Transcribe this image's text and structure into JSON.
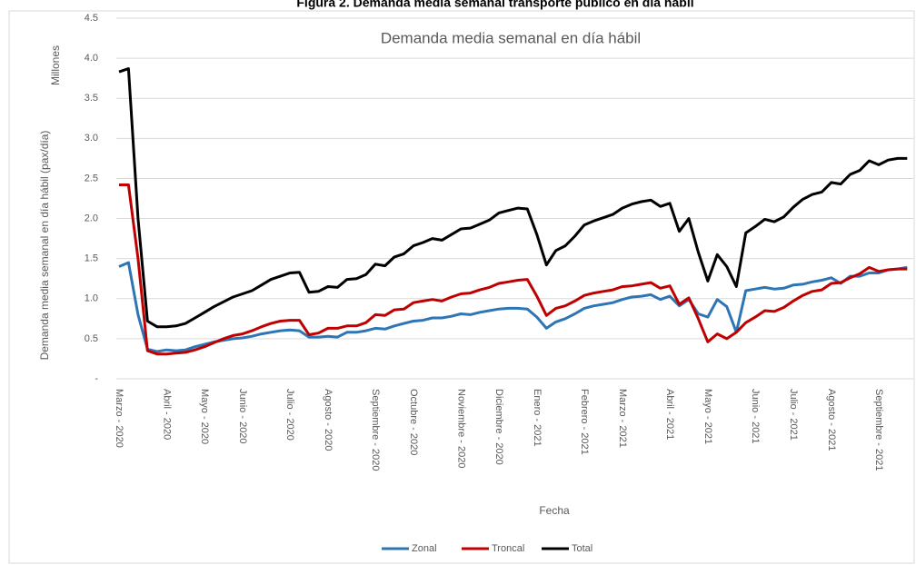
{
  "chart_data": {
    "type": "line",
    "figure_title": "Figura 2. Demanda media semanal transporte público en día hábil",
    "title": "Demanda media semanal en día hábil",
    "y_label": "Demanda media semanal en día hábil (pax/día)",
    "y_unit": "Millones",
    "x_label": "Fecha",
    "categories": [
      "Marzo - 2020",
      null,
      null,
      null,
      null,
      "Abril - 2020",
      null,
      null,
      null,
      "Mayo - 2020",
      null,
      null,
      null,
      "Junio - 2020",
      null,
      null,
      null,
      null,
      "Julio - 2020",
      null,
      null,
      null,
      "Agosto - 2020",
      null,
      null,
      null,
      null,
      "Septiembre - 2020",
      null,
      null,
      null,
      "Octubre - 2020",
      null,
      null,
      null,
      null,
      "Noviembre - 2020",
      null,
      null,
      null,
      "Diciembre - 2020",
      null,
      null,
      null,
      "Enero - 2021",
      null,
      null,
      null,
      null,
      "Febrero - 2021",
      null,
      null,
      null,
      "Marzo - 2021",
      null,
      null,
      null,
      null,
      "Abril - 2021",
      null,
      null,
      null,
      "Mayo - 2021",
      null,
      null,
      null,
      null,
      "Junio - 2021",
      null,
      null,
      null,
      "Julio - 2021",
      null,
      null,
      null,
      "Agosto - 2021",
      null,
      null,
      null,
      null,
      "Septiembre - 2021",
      null,
      null,
      null
    ],
    "series": [
      {
        "name": "Zonal",
        "color": "#2e75b6",
        "values": [
          1.4,
          1.45,
          0.8,
          0.37,
          0.34,
          0.36,
          0.35,
          0.36,
          0.4,
          0.43,
          0.46,
          0.48,
          0.5,
          0.51,
          0.53,
          0.56,
          0.58,
          0.6,
          0.61,
          0.6,
          0.52,
          0.52,
          0.53,
          0.52,
          0.58,
          0.58,
          0.6,
          0.63,
          0.62,
          0.66,
          0.69,
          0.72,
          0.73,
          0.76,
          0.76,
          0.78,
          0.81,
          0.8,
          0.83,
          0.85,
          0.87,
          0.88,
          0.88,
          0.87,
          0.77,
          0.63,
          0.71,
          0.75,
          0.81,
          0.88,
          0.91,
          0.93,
          0.95,
          0.99,
          1.02,
          1.03,
          1.05,
          0.99,
          1.03,
          0.91,
          0.99,
          0.81,
          0.77,
          0.99,
          0.9,
          0.58,
          1.1,
          1.12,
          1.14,
          1.12,
          1.13,
          1.17,
          1.18,
          1.21,
          1.23,
          1.26,
          1.19,
          1.28,
          1.28,
          1.32,
          1.32,
          1.36,
          1.37,
          1.39
        ]
      },
      {
        "name": "Troncal",
        "color": "#c00000",
        "values": [
          2.42,
          2.42,
          1.5,
          0.35,
          0.31,
          0.31,
          0.32,
          0.33,
          0.36,
          0.4,
          0.45,
          0.5,
          0.54,
          0.56,
          0.6,
          0.65,
          0.69,
          0.72,
          0.73,
          0.73,
          0.55,
          0.57,
          0.63,
          0.63,
          0.66,
          0.66,
          0.7,
          0.8,
          0.79,
          0.86,
          0.87,
          0.95,
          0.97,
          0.99,
          0.97,
          1.02,
          1.06,
          1.07,
          1.11,
          1.14,
          1.19,
          1.21,
          1.23,
          1.24,
          1.03,
          0.79,
          0.88,
          0.91,
          0.97,
          1.04,
          1.07,
          1.09,
          1.11,
          1.15,
          1.16,
          1.18,
          1.2,
          1.13,
          1.16,
          0.93,
          1.01,
          0.75,
          0.46,
          0.56,
          0.5,
          0.58,
          0.7,
          0.77,
          0.85,
          0.84,
          0.89,
          0.97,
          1.04,
          1.09,
          1.11,
          1.19,
          1.2,
          1.26,
          1.31,
          1.39,
          1.34,
          1.36,
          1.37,
          1.37
        ]
      },
      {
        "name": "Total",
        "color": "#000000",
        "values": [
          3.83,
          3.87,
          2.0,
          0.72,
          0.65,
          0.65,
          0.66,
          0.69,
          0.76,
          0.83,
          0.9,
          0.96,
          1.02,
          1.06,
          1.1,
          1.17,
          1.24,
          1.28,
          1.32,
          1.33,
          1.08,
          1.09,
          1.15,
          1.14,
          1.24,
          1.25,
          1.3,
          1.43,
          1.41,
          1.52,
          1.56,
          1.66,
          1.7,
          1.75,
          1.73,
          1.8,
          1.87,
          1.88,
          1.93,
          1.98,
          2.07,
          2.1,
          2.13,
          2.12,
          1.8,
          1.42,
          1.6,
          1.66,
          1.78,
          1.92,
          1.97,
          2.01,
          2.05,
          2.13,
          2.18,
          2.21,
          2.23,
          2.15,
          2.19,
          1.84,
          2.0,
          1.58,
          1.22,
          1.55,
          1.4,
          1.15,
          1.82,
          1.9,
          1.99,
          1.96,
          2.02,
          2.14,
          2.24,
          2.3,
          2.33,
          2.45,
          2.43,
          2.55,
          2.6,
          2.72,
          2.67,
          2.73,
          2.75,
          2.75
        ]
      }
    ],
    "ylim": [
      0,
      4.5
    ],
    "yticks": [
      {
        "value": 0,
        "label": "-"
      },
      0.5,
      {
        "value": 1,
        "label": "1.0"
      },
      1.5,
      {
        "value": 2,
        "label": "2.0"
      },
      2.5,
      {
        "value": 3,
        "label": "3.0"
      },
      3.5,
      {
        "value": 4,
        "label": "4.0"
      },
      4.5
    ],
    "grid": true,
    "legend": "bottom"
  }
}
